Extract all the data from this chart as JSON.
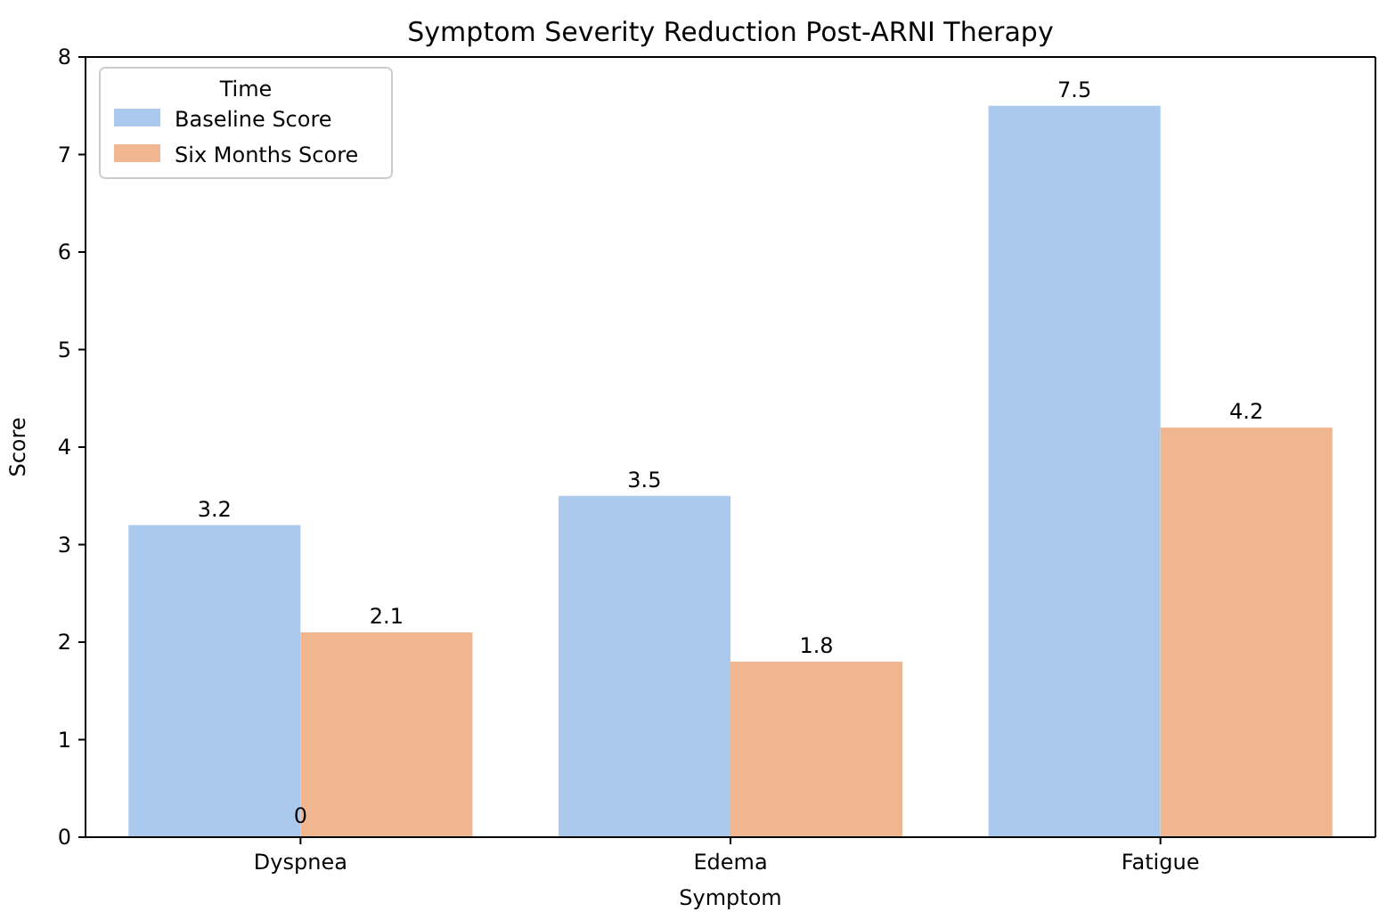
{
  "chart_data": {
    "type": "bar",
    "title": "Symptom Severity Reduction Post-ARNI Therapy",
    "xlabel": "Symptom",
    "ylabel": "Score",
    "legend_title": "Time",
    "categories": [
      "Dyspnea",
      "Edema",
      "Fatigue"
    ],
    "series": [
      {
        "name": "Baseline Score",
        "color": "#abc9ed",
        "values": [
          3.2,
          3.5,
          7.5
        ]
      },
      {
        "name": "Six Months Score",
        "color": "#f0b690",
        "values": [
          2.1,
          1.8,
          4.2
        ]
      }
    ],
    "ylim": [
      0,
      8
    ],
    "yticks": [
      0,
      1,
      2,
      3,
      4,
      5,
      6,
      7,
      8
    ],
    "data_labels": true,
    "legend": "top left",
    "annotations": [
      {
        "text": "0",
        "x": "Dyspnea",
        "y": 0
      }
    ]
  }
}
